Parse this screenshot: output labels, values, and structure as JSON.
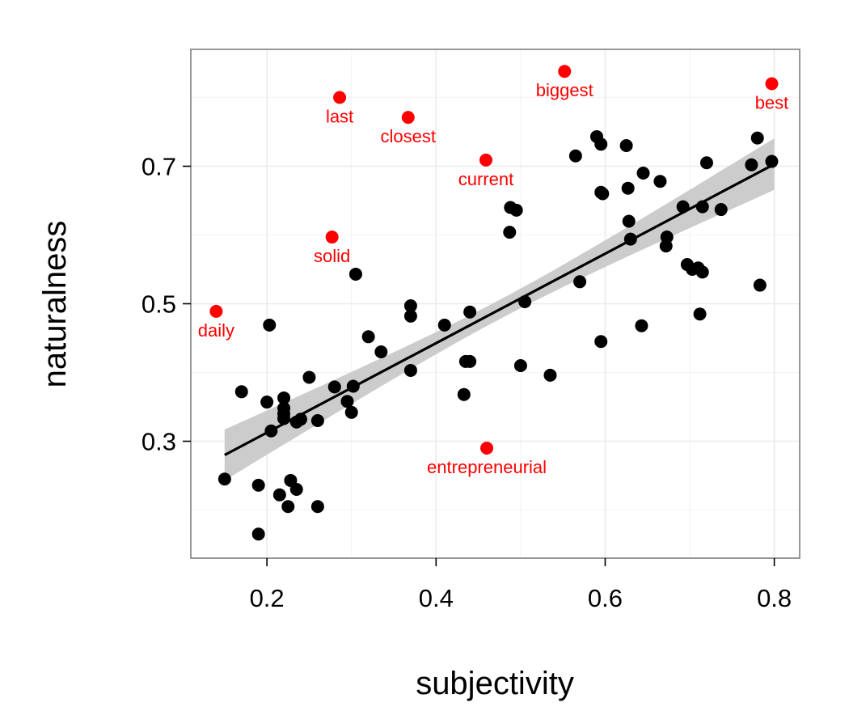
{
  "chart_data": {
    "type": "scatter",
    "xlabel": "subjectivity",
    "ylabel": "naturalness",
    "xlim": [
      0.11,
      0.83
    ],
    "ylim": [
      0.13,
      0.87
    ],
    "x_ticks": [
      0.2,
      0.4,
      0.6,
      0.8
    ],
    "x_tick_labels": [
      "0.2",
      "0.4",
      "0.6",
      "0.8"
    ],
    "y_ticks": [
      0.3,
      0.5,
      0.7
    ],
    "y_tick_labels": [
      "0.3",
      "0.5",
      "0.7"
    ],
    "grid": true,
    "legend": "none",
    "colors": {
      "points": "#000000",
      "highlight": "#ff0000",
      "trend_line": "#000000",
      "confidence_band": "#cccccc",
      "panel_border": "#7f7f7f",
      "grid": "#ebebeb"
    },
    "trend_line": {
      "type": "linear",
      "x": [
        0.15,
        0.8
      ],
      "y": [
        0.28,
        0.703
      ],
      "band_lower": [
        0.243,
        0.668
      ],
      "band_upper": [
        0.317,
        0.743
      ]
    },
    "series": [
      {
        "points": [
          [
            0.15,
            0.245
          ],
          [
            0.17,
            0.372
          ],
          [
            0.19,
            0.165
          ],
          [
            0.19,
            0.236
          ],
          [
            0.2,
            0.357
          ],
          [
            0.203,
            0.469
          ],
          [
            0.205,
            0.315
          ],
          [
            0.215,
            0.222
          ],
          [
            0.22,
            0.363
          ],
          [
            0.22,
            0.348
          ],
          [
            0.22,
            0.34
          ],
          [
            0.22,
            0.333
          ],
          [
            0.225,
            0.205
          ],
          [
            0.228,
            0.243
          ],
          [
            0.235,
            0.23
          ],
          [
            0.235,
            0.328
          ],
          [
            0.24,
            0.332
          ],
          [
            0.25,
            0.393
          ],
          [
            0.26,
            0.205
          ],
          [
            0.26,
            0.33
          ],
          [
            0.28,
            0.379
          ],
          [
            0.295,
            0.358
          ],
          [
            0.3,
            0.342
          ],
          [
            0.302,
            0.38
          ],
          [
            0.305,
            0.543
          ],
          [
            0.32,
            0.452
          ],
          [
            0.335,
            0.43
          ],
          [
            0.37,
            0.497
          ],
          [
            0.37,
            0.482
          ],
          [
            0.37,
            0.403
          ],
          [
            0.41,
            0.469
          ],
          [
            0.433,
            0.368
          ],
          [
            0.435,
            0.416
          ],
          [
            0.44,
            0.416
          ],
          [
            0.44,
            0.488
          ],
          [
            0.487,
            0.604
          ],
          [
            0.488,
            0.64
          ],
          [
            0.495,
            0.636
          ],
          [
            0.5,
            0.41
          ],
          [
            0.505,
            0.503
          ],
          [
            0.535,
            0.396
          ],
          [
            0.565,
            0.715
          ],
          [
            0.57,
            0.532
          ],
          [
            0.59,
            0.743
          ],
          [
            0.595,
            0.732
          ],
          [
            0.595,
            0.445
          ],
          [
            0.595,
            0.662
          ],
          [
            0.597,
            0.66
          ],
          [
            0.625,
            0.73
          ],
          [
            0.627,
            0.668
          ],
          [
            0.628,
            0.62
          ],
          [
            0.63,
            0.594
          ],
          [
            0.643,
            0.468
          ],
          [
            0.645,
            0.69
          ],
          [
            0.665,
            0.678
          ],
          [
            0.672,
            0.584
          ],
          [
            0.673,
            0.597
          ],
          [
            0.692,
            0.641
          ],
          [
            0.697,
            0.557
          ],
          [
            0.703,
            0.55
          ],
          [
            0.71,
            0.552
          ],
          [
            0.712,
            0.485
          ],
          [
            0.715,
            0.641
          ],
          [
            0.715,
            0.546
          ],
          [
            0.72,
            0.705
          ],
          [
            0.737,
            0.637
          ],
          [
            0.773,
            0.702
          ],
          [
            0.78,
            0.741
          ],
          [
            0.783,
            0.527
          ],
          [
            0.797,
            0.707
          ]
        ]
      },
      {
        "points": [
          {
            "x": 0.14,
            "y": 0.489,
            "label": "daily"
          },
          {
            "x": 0.277,
            "y": 0.597,
            "label": "solid"
          },
          {
            "x": 0.286,
            "y": 0.8,
            "label": "last"
          },
          {
            "x": 0.367,
            "y": 0.771,
            "label": "closest"
          },
          {
            "x": 0.459,
            "y": 0.709,
            "label": "current"
          },
          {
            "x": 0.46,
            "y": 0.29,
            "label": "entrepreneurial"
          },
          {
            "x": 0.552,
            "y": 0.838,
            "label": "biggest"
          },
          {
            "x": 0.797,
            "y": 0.82,
            "label": "best"
          }
        ]
      }
    ]
  }
}
